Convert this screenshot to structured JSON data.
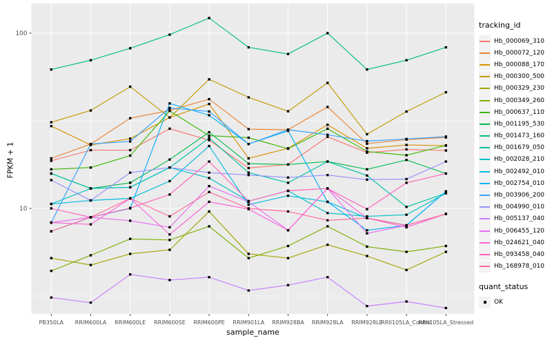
{
  "chart_data": {
    "type": "line",
    "title": "",
    "xlabel": "sample_name",
    "ylabel": "FPKM + 1",
    "y_scale": "log10",
    "ylim": [
      2.5,
      147
    ],
    "y_major_ticks": [
      100,
      10
    ],
    "y_tick_labels": [
      "100",
      "10"
    ],
    "y_minor_gridlines": [
      31.62,
      3.162
    ],
    "grid": "white major and minor gridlines on gray panel",
    "legend_position": "right",
    "point_shape": "black square",
    "categories": [
      "PB350LA",
      "RRIM600LA",
      "RRIM600LE",
      "RRIM600SE",
      "RRIM600PE",
      "RRIM901LA",
      "RRIM928BA",
      "RRIM928LA",
      "RRIM928LE",
      "RRII105LA_Control",
      "RRII105LA_Stressed"
    ],
    "series": [
      {
        "name": "Hb_000069_310",
        "color": "#F8766D",
        "values": [
          18.7,
          21.5,
          21.5,
          28.5,
          24.5,
          17.0,
          17.8,
          25.6,
          20.8,
          21.7,
          21.4
        ]
      },
      {
        "name": "Hb_000072_120",
        "color": "#EA8331",
        "values": [
          19.3,
          23.3,
          32.7,
          36.2,
          42.0,
          28.3,
          28.1,
          37.9,
          23.4,
          24.7,
          25.4
        ]
      },
      {
        "name": "Hb_000088_170",
        "color": "#D89000",
        "values": [
          29.5,
          23.0,
          25.0,
          33.0,
          39.4,
          19.3,
          22.0,
          30.0,
          22.0,
          23.0,
          22.8
        ]
      },
      {
        "name": "Hb_000300_500",
        "color": "#C09B00",
        "values": [
          31.0,
          36.2,
          49.5,
          33.0,
          54.5,
          43.0,
          35.8,
          52.0,
          26.5,
          35.7,
          46.0
        ]
      },
      {
        "name": "Hb_000329_230",
        "color": "#A3A500",
        "values": [
          5.2,
          4.75,
          5.5,
          5.8,
          9.6,
          5.5,
          5.2,
          6.2,
          5.35,
          4.45,
          5.65
        ]
      },
      {
        "name": "Hb_000349_260",
        "color": "#7CAE00",
        "values": [
          4.4,
          5.4,
          6.7,
          6.6,
          7.9,
          5.2,
          6.1,
          7.9,
          6.05,
          5.65,
          6.1
        ]
      },
      {
        "name": "Hb_000637_110",
        "color": "#39B600",
        "values": [
          16.7,
          17.1,
          20.0,
          36.0,
          26.0,
          25.3,
          21.9,
          28.5,
          21.1,
          20.1,
          22.9
        ]
      },
      {
        "name": "Hb_001195_530",
        "color": "#00BB4E",
        "values": [
          15.8,
          13.0,
          14.0,
          19.0,
          27.2,
          18.0,
          17.8,
          18.5,
          16.7,
          18.9,
          15.8
        ]
      },
      {
        "name": "Hb_001473_160",
        "color": "#00BF7D",
        "values": [
          62,
          70,
          82,
          98,
          122,
          83,
          76,
          100,
          62,
          70,
          83
        ]
      },
      {
        "name": "Hb_001679_050",
        "color": "#00C1A3",
        "values": [
          15.8,
          13.0,
          13.2,
          17.1,
          25.2,
          16.0,
          14.0,
          18.5,
          15.4,
          10.2,
          12.2
        ]
      },
      {
        "name": "Hb_002028_210",
        "color": "#00BFC4",
        "values": [
          10.6,
          13.0,
          13.2,
          17.1,
          14.9,
          11.0,
          12.6,
          9.4,
          9.0,
          9.2,
          12.2
        ]
      },
      {
        "name": "Hb_002492_010",
        "color": "#00BAE0",
        "values": [
          10.6,
          11.1,
          11.4,
          14.3,
          22.7,
          10.5,
          11.8,
          10.9,
          8.8,
          8.0,
          12.5
        ]
      },
      {
        "name": "Hb_002754_010",
        "color": "#00B0F6",
        "values": [
          7.4,
          8.9,
          10.0,
          39.7,
          34.0,
          23.3,
          27.7,
          10.9,
          7.5,
          8.0,
          12.5
        ]
      },
      {
        "name": "Hb_003906_200",
        "color": "#35A2FF",
        "values": [
          8.3,
          23.3,
          24.1,
          37.4,
          35.7,
          23.3,
          28.1,
          26.3,
          24.2,
          24.9,
          25.7
        ]
      },
      {
        "name": "Hb_004990_010",
        "color": "#9590FF",
        "values": [
          14.5,
          11.1,
          16.0,
          17.1,
          16.0,
          15.5,
          15.0,
          15.5,
          14.6,
          14.7,
          18.5
        ]
      },
      {
        "name": "Hb_005137_040",
        "color": "#C77CFF",
        "values": [
          3.1,
          2.9,
          4.2,
          3.9,
          4.05,
          3.4,
          3.65,
          4.05,
          2.77,
          2.94,
          2.7
        ]
      },
      {
        "name": "Hb_006455_120",
        "color": "#E76BF3",
        "values": [
          8.3,
          8.9,
          8.5,
          7.8,
          13.4,
          10.9,
          7.5,
          13.0,
          7.2,
          8.0,
          9.3
        ]
      },
      {
        "name": "Hb_024621_040",
        "color": "#FA62DB",
        "values": [
          8.3,
          8.1,
          11.4,
          7.1,
          10.9,
          9.9,
          7.5,
          13.0,
          8.8,
          7.8,
          9.3
        ]
      },
      {
        "name": "Hb_093458_040",
        "color": "#FF62BC",
        "values": [
          10.0,
          8.9,
          10.05,
          12.0,
          18.5,
          11.0,
          12.6,
          13.0,
          9.9,
          14.0,
          15.8
        ]
      },
      {
        "name": "Hb_168978_010",
        "color": "#FF6A98",
        "values": [
          7.4,
          8.9,
          11.4,
          9.0,
          12.4,
          10.0,
          9.6,
          8.55,
          8.8,
          8.0,
          9.3
        ]
      }
    ]
  },
  "legend": {
    "tracking_title": "tracking_id",
    "quant_title": "quant_status",
    "quant_items": [
      {
        "label": "OK"
      }
    ]
  },
  "style": {
    "panel_bg": "#EBEBEB",
    "grid_color": "#FFFFFF",
    "tick_text_color": "#4D4D4D",
    "point_color": "#000000",
    "swatch_bg": "#F2F2F2"
  }
}
